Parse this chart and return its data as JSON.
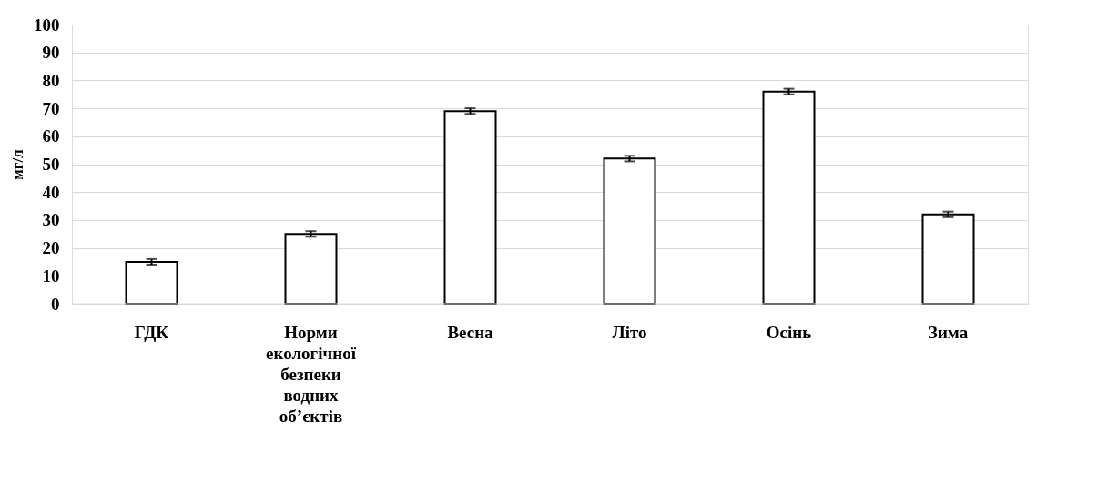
{
  "chart_data": {
    "type": "bar",
    "ylabel": "мг/л",
    "categories": [
      "ГДК",
      "Норми екологічної безпеки водних об’єктів",
      "Весна",
      "Літо",
      "Осінь",
      "Зима"
    ],
    "values": [
      15,
      25,
      69,
      52,
      76,
      32
    ],
    "errors": [
      1,
      1,
      1,
      1,
      1,
      1
    ],
    "color": "#ffffff",
    "ylim": [
      0,
      100
    ],
    "yticks": [
      0,
      10,
      20,
      30,
      40,
      50,
      60,
      70,
      80,
      90,
      100
    ],
    "grid": "y"
  }
}
